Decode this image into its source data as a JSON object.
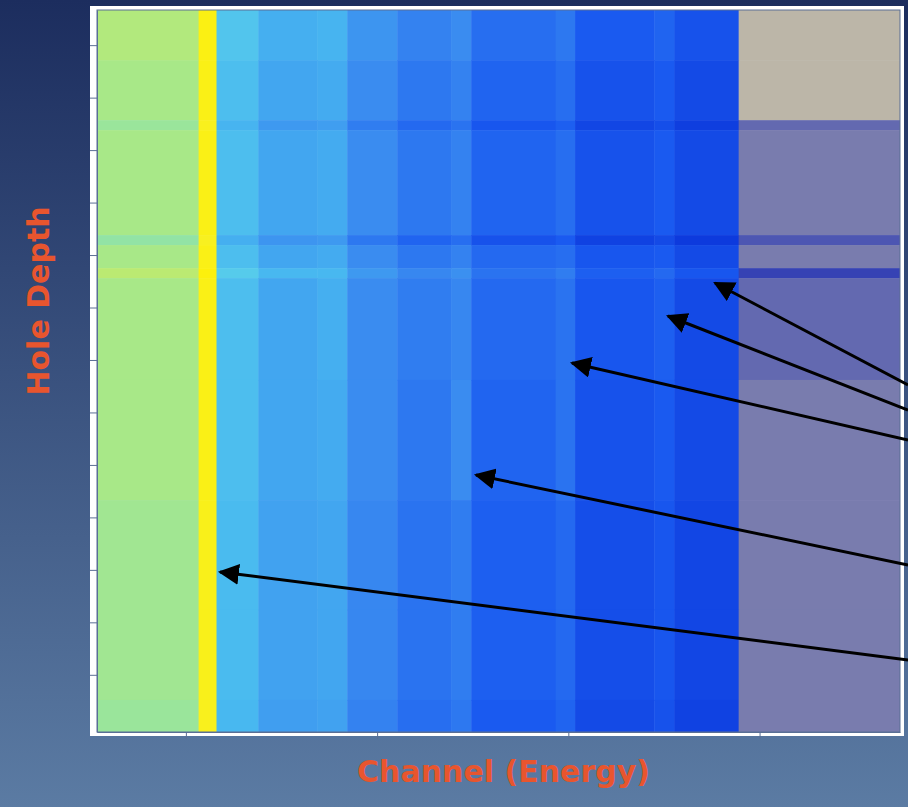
{
  "chart_data": {
    "type": "heatmap",
    "x_label": "Channel (Energy)",
    "y_label": "Hole Depth",
    "xlim": [
      137,
      1212
    ],
    "ylim": [
      3.3,
      140.9
    ],
    "xticks": [
      256,
      512,
      768,
      1024
    ],
    "yticks": [
      10,
      20,
      30,
      40,
      50,
      60,
      70,
      80,
      90,
      100,
      110,
      120,
      130
    ],
    "tick_labels": false,
    "zlim": [
      0,
      10
    ],
    "x_edges": [
      137,
      273,
      297,
      353,
      432,
      472,
      539,
      611,
      638,
      751,
      777,
      883,
      910,
      996,
      1212
    ],
    "y_edges": [
      3.3,
      12.9,
      24.3,
      26.2,
      46.2,
      48.1,
      52.5,
      54.4,
      73.8,
      96.7,
      117.6,
      134.8,
      140.9
    ],
    "cells": [
      [
        7.2,
        9.4,
        5.4,
        4.8,
        4.9,
        4.2,
        3.8,
        4.0,
        3.4,
        3.6,
        3.0,
        3.2,
        2.8,
        0.2
      ],
      [
        7.0,
        9.3,
        5.2,
        4.6,
        4.7,
        4.0,
        3.6,
        3.8,
        3.2,
        3.4,
        2.8,
        3.0,
        2.6,
        0.2
      ],
      [
        6.8,
        9.1,
        4.9,
        4.3,
        4.4,
        3.7,
        3.3,
        3.5,
        2.9,
        3.1,
        2.5,
        2.7,
        2.3,
        0.6
      ],
      [
        7.0,
        9.3,
        5.2,
        4.6,
        4.7,
        4.0,
        3.6,
        3.8,
        3.2,
        3.4,
        2.8,
        3.0,
        2.6,
        0.5
      ],
      [
        6.7,
        9.0,
        4.8,
        4.2,
        4.3,
        3.6,
        3.2,
        3.4,
        2.8,
        3.0,
        2.4,
        2.6,
        2.2,
        0.7
      ],
      [
        7.0,
        9.3,
        5.2,
        4.6,
        4.7,
        4.0,
        3.6,
        3.8,
        3.3,
        3.4,
        2.9,
        3.0,
        2.6,
        0.5
      ],
      [
        7.4,
        9.6,
        5.6,
        5.0,
        5.0,
        4.3,
        3.9,
        4.1,
        3.5,
        3.7,
        3.1,
        3.3,
        2.9,
        0.8
      ],
      [
        7.0,
        9.3,
        5.2,
        4.6,
        4.8,
        4.0,
        3.7,
        3.9,
        3.3,
        3.5,
        2.9,
        3.1,
        2.6,
        0.6
      ],
      [
        7.0,
        9.3,
        5.2,
        4.6,
        4.7,
        4.0,
        3.6,
        4.0,
        3.2,
        3.5,
        2.8,
        3.0,
        2.6,
        0.5
      ],
      [
        6.9,
        9.2,
        5.1,
        4.5,
        4.6,
        3.9,
        3.5,
        3.7,
        3.1,
        3.3,
        2.7,
        2.9,
        2.5,
        0.5
      ],
      [
        6.9,
        9.2,
        5.1,
        4.5,
        4.6,
        3.9,
        3.5,
        3.7,
        3.1,
        3.3,
        2.7,
        2.9,
        2.5,
        0.5
      ],
      [
        6.8,
        9.1,
        5.0,
        4.4,
        4.5,
        3.8,
        3.4,
        3.6,
        3.0,
        3.2,
        2.6,
        2.8,
        2.4,
        0.5
      ]
    ]
  }
}
